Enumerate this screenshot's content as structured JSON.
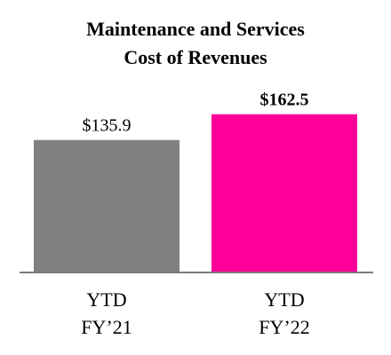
{
  "chart_data": {
    "type": "bar",
    "title_lines": [
      "Maintenance and Services",
      "Cost of Revenues"
    ],
    "categories": [
      {
        "line1": "YTD",
        "line2": "FY’21"
      },
      {
        "line1": "YTD",
        "line2": "FY’22"
      }
    ],
    "values": [
      135.9,
      162.5
    ],
    "value_labels": [
      "$135.9",
      "$162.5"
    ],
    "colors": [
      "#808080",
      "#ff0099"
    ],
    "ylim": [
      0,
      220
    ],
    "grid": false,
    "xlabel": "",
    "ylabel": ""
  }
}
